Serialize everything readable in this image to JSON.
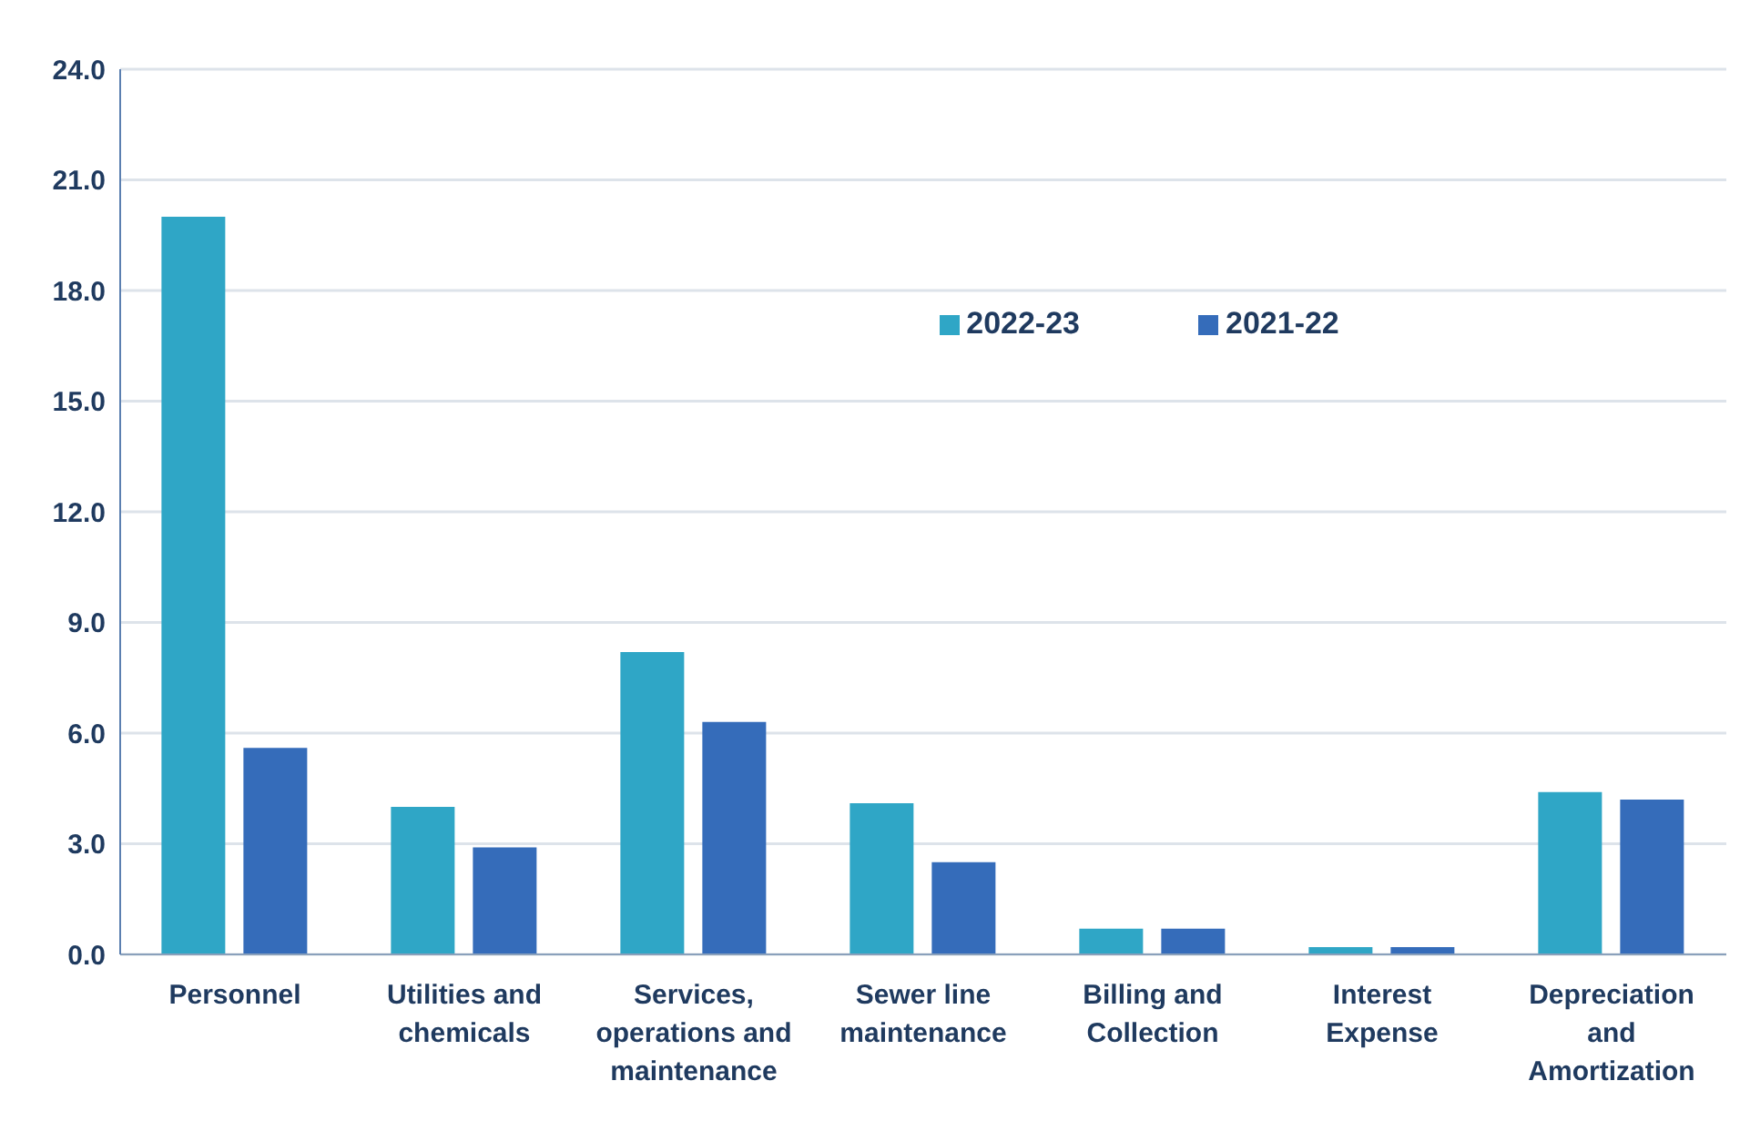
{
  "chart_data": {
    "type": "bar",
    "categories": [
      "Personnel",
      "Utilities and chemicals",
      "Services, operations and maintenance",
      "Sewer line maintenance",
      "Billing and Collection",
      "Interest Expense",
      "Depreciation and Amortization"
    ],
    "series": [
      {
        "name": "2022-23",
        "color": "#2fa6c6",
        "values": [
          20.0,
          4.0,
          8.2,
          4.1,
          0.7,
          0.2,
          4.4
        ]
      },
      {
        "name": "2021-22",
        "color": "#356cba",
        "values": [
          5.6,
          2.9,
          6.3,
          2.5,
          0.7,
          0.2,
          4.2
        ]
      }
    ],
    "ylim": [
      0,
      24
    ],
    "yticks": [
      {
        "value": 0,
        "label": "0.0"
      },
      {
        "value": 3,
        "label": "3.0"
      },
      {
        "value": 6,
        "label": "6.0"
      },
      {
        "value": 9,
        "label": "9.0"
      },
      {
        "value": 12,
        "label": "12.0"
      },
      {
        "value": 15,
        "label": "15.0"
      },
      {
        "value": 18,
        "label": "18.0"
      },
      {
        "value": 21,
        "label": "21.0"
      },
      {
        "value": 24,
        "label": "24.0"
      }
    ],
    "grid": "y",
    "legend": "top"
  }
}
